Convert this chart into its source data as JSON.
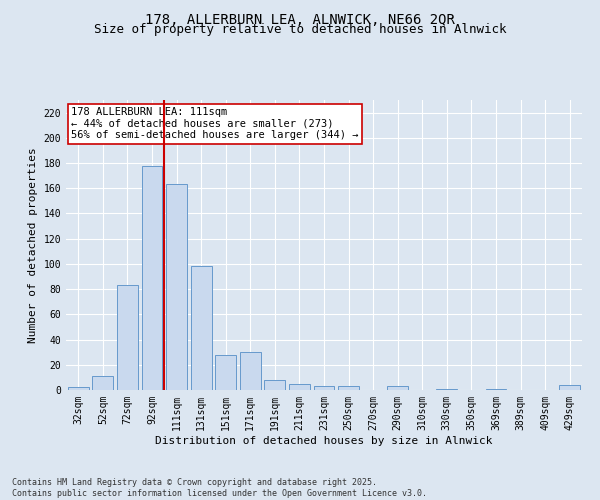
{
  "title_line1": "178, ALLERBURN LEA, ALNWICK, NE66 2QR",
  "title_line2": "Size of property relative to detached houses in Alnwick",
  "xlabel": "Distribution of detached houses by size in Alnwick",
  "ylabel": "Number of detached properties",
  "categories": [
    "32sqm",
    "52sqm",
    "72sqm",
    "92sqm",
    "111sqm",
    "131sqm",
    "151sqm",
    "171sqm",
    "191sqm",
    "211sqm",
    "231sqm",
    "250sqm",
    "270sqm",
    "290sqm",
    "310sqm",
    "330sqm",
    "350sqm",
    "369sqm",
    "389sqm",
    "409sqm",
    "429sqm"
  ],
  "values": [
    2,
    11,
    83,
    178,
    163,
    98,
    28,
    30,
    8,
    5,
    3,
    3,
    0,
    3,
    0,
    1,
    0,
    1,
    0,
    0,
    4
  ],
  "bar_color": "#c9d9ee",
  "bar_edge_color": "#6699cc",
  "vline_color": "#cc0000",
  "annotation_text": "178 ALLERBURN LEA: 111sqm\n← 44% of detached houses are smaller (273)\n56% of semi-detached houses are larger (344) →",
  "annotation_box_color": "#ffffff",
  "annotation_box_edge_color": "#cc0000",
  "ylim": [
    0,
    230
  ],
  "yticks": [
    0,
    20,
    40,
    60,
    80,
    100,
    120,
    140,
    160,
    180,
    200,
    220
  ],
  "background_color": "#dce6f1",
  "plot_background_color": "#dce6f1",
  "footnote": "Contains HM Land Registry data © Crown copyright and database right 2025.\nContains public sector information licensed under the Open Government Licence v3.0.",
  "title_fontsize": 10,
  "subtitle_fontsize": 9,
  "axis_label_fontsize": 8,
  "tick_fontsize": 7,
  "annotation_fontsize": 7.5,
  "footnote_fontsize": 6
}
